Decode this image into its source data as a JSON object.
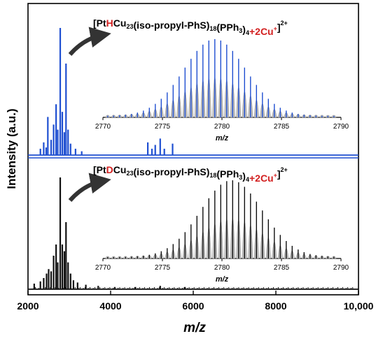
{
  "chart_data": {
    "type": "line",
    "ylabel": "Intensity (a.u.)",
    "xlabel": "m/z",
    "xlim": [
      2000,
      10000
    ],
    "xticks": [
      "2000",
      "4000",
      "6000",
      "8000",
      "10,000"
    ],
    "colors": {
      "top": "#1f4fd1",
      "bottom": "#111111",
      "inset_fill": "#bdbdbd",
      "highlight": "#d21f1f"
    },
    "panels": [
      {
        "id": "top",
        "formula": {
          "pre": "[Pt",
          "iso": "H",
          "post": "Cu23(iso-propyl-PhS)18(PPh3)4",
          "add": "+2Cu+",
          "charge": "2+"
        },
        "peaks": [
          {
            "x": 2300,
            "y": 0.05
          },
          {
            "x": 2380,
            "y": 0.1
          },
          {
            "x": 2440,
            "y": 0.06
          },
          {
            "x": 2480,
            "y": 0.3
          },
          {
            "x": 2560,
            "y": 0.12
          },
          {
            "x": 2620,
            "y": 0.24
          },
          {
            "x": 2680,
            "y": 0.4
          },
          {
            "x": 2720,
            "y": 0.2
          },
          {
            "x": 2780,
            "y": 1.0
          },
          {
            "x": 2830,
            "y": 0.34
          },
          {
            "x": 2880,
            "y": 0.18
          },
          {
            "x": 2920,
            "y": 0.72
          },
          {
            "x": 2970,
            "y": 0.2
          },
          {
            "x": 3030,
            "y": 0.09
          },
          {
            "x": 3150,
            "y": 0.05
          },
          {
            "x": 3300,
            "y": 0.03
          },
          {
            "x": 4900,
            "y": 0.1
          },
          {
            "x": 5000,
            "y": 0.05
          },
          {
            "x": 5080,
            "y": 0.08
          },
          {
            "x": 5200,
            "y": 0.13
          },
          {
            "x": 5300,
            "y": 0.05
          },
          {
            "x": 5500,
            "y": 0.09
          }
        ],
        "inset": {
          "xlim": [
            2770,
            2790
          ],
          "center": 2779.4,
          "spacing": 0.5,
          "sigma": 2.6,
          "start": 2770.4,
          "end": 2789.6,
          "xticks": [
            "2770",
            "2775",
            "2780",
            "2785",
            "2790"
          ],
          "xlabel": "m/z"
        }
      },
      {
        "id": "bottom",
        "formula": {
          "pre": "[Pt",
          "iso": "D",
          "post": "Cu23(iso-propyl-PhS)18(PPh3)4",
          "add": "+2Cu+",
          "charge": "2+"
        },
        "peaks": [
          {
            "x": 2150,
            "y": 0.05
          },
          {
            "x": 2300,
            "y": 0.07
          },
          {
            "x": 2380,
            "y": 0.1
          },
          {
            "x": 2450,
            "y": 0.14
          },
          {
            "x": 2500,
            "y": 0.18
          },
          {
            "x": 2560,
            "y": 0.16
          },
          {
            "x": 2620,
            "y": 0.3
          },
          {
            "x": 2680,
            "y": 0.4
          },
          {
            "x": 2720,
            "y": 0.24
          },
          {
            "x": 2780,
            "y": 1.0
          },
          {
            "x": 2830,
            "y": 0.4
          },
          {
            "x": 2880,
            "y": 0.34
          },
          {
            "x": 2920,
            "y": 0.6
          },
          {
            "x": 2970,
            "y": 0.24
          },
          {
            "x": 3030,
            "y": 0.14
          },
          {
            "x": 3100,
            "y": 0.08
          },
          {
            "x": 3200,
            "y": 0.06
          },
          {
            "x": 3400,
            "y": 0.04
          },
          {
            "x": 3700,
            "y": 0.03
          },
          {
            "x": 4100,
            "y": 0.02
          },
          {
            "x": 4600,
            "y": 0.02
          },
          {
            "x": 5200,
            "y": 0.03
          },
          {
            "x": 5800,
            "y": 0.02
          }
        ],
        "inset": {
          "xlim": [
            2770,
            2790
          ],
          "center": 2780.8,
          "spacing": 0.5,
          "sigma": 2.6,
          "start": 2770.4,
          "end": 2789.6,
          "xticks": [
            "2770",
            "2775",
            "2780",
            "2785",
            "2790"
          ],
          "xlabel": "m/z"
        }
      }
    ]
  }
}
